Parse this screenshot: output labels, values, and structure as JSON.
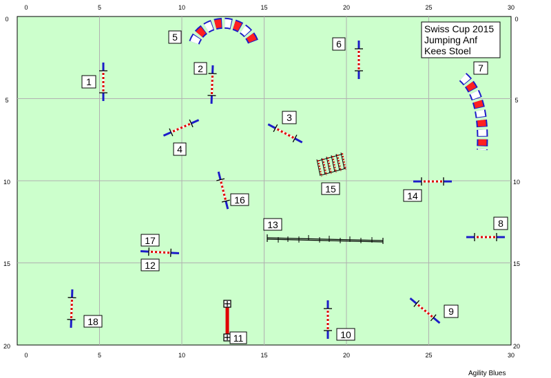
{
  "course": {
    "title_lines": [
      "Swiss Cup 2015",
      "Jumping Anf",
      "Kees Stoel"
    ],
    "footer": "Agility Blues",
    "x_ticks": [
      "0",
      "5",
      "10",
      "15",
      "20",
      "25",
      "30"
    ],
    "y_ticks": [
      "0",
      "5",
      "10",
      "15",
      "20"
    ],
    "colors": {
      "field": "#ccffcc",
      "grid": "#b0b0b0",
      "pole_red": "#e00000",
      "wing_blue": "#1c1cc8",
      "tunnel_red": "#ff2020",
      "tunnel_blue": "#2030e0"
    }
  },
  "obstacles": [
    {
      "num": "1",
      "type": "jump"
    },
    {
      "num": "2",
      "type": "jump"
    },
    {
      "num": "3",
      "type": "jump"
    },
    {
      "num": "4",
      "type": "jump"
    },
    {
      "num": "5",
      "type": "tunnel"
    },
    {
      "num": "6",
      "type": "jump"
    },
    {
      "num": "7",
      "type": "tunnel"
    },
    {
      "num": "8",
      "type": "jump"
    },
    {
      "num": "9",
      "type": "jump"
    },
    {
      "num": "10",
      "type": "jump"
    },
    {
      "num": "11",
      "type": "tire"
    },
    {
      "num": "12",
      "type": "jump"
    },
    {
      "num": "13",
      "type": "dog-walk"
    },
    {
      "num": "14",
      "type": "jump"
    },
    {
      "num": "15",
      "type": "weave-poles"
    },
    {
      "num": "16",
      "type": "jump"
    },
    {
      "num": "17",
      "type": "jump"
    },
    {
      "num": "18",
      "type": "jump"
    }
  ]
}
